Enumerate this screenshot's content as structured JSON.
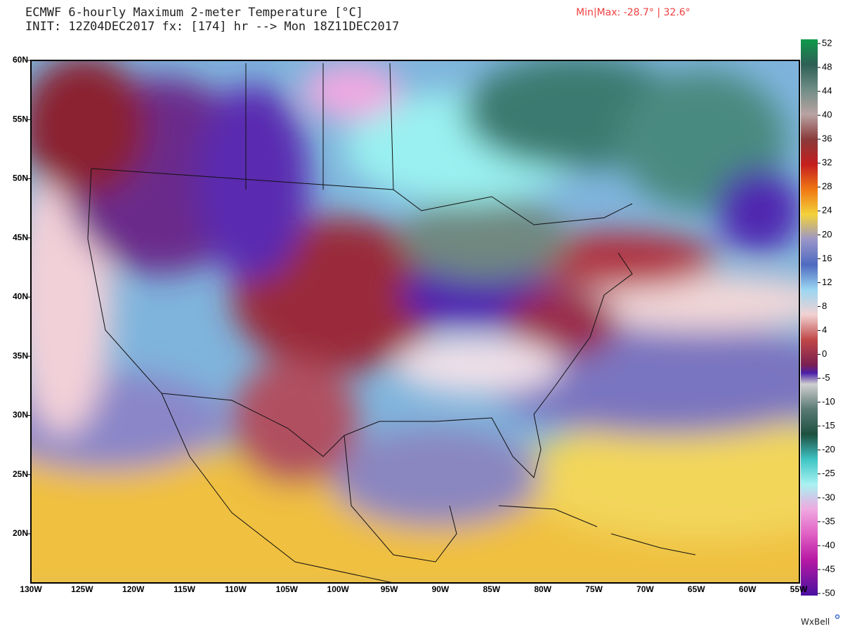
{
  "header": {
    "title": "ECMWF 6-hourly Maximum 2-meter Temperature [°C]",
    "subtitle": "INIT: 12Z04DEC2017 fx: [174] hr --> Mon 18Z11DEC2017",
    "minmax": "Min|Max: -28.7° | 32.6°"
  },
  "map": {
    "lat_labels": [
      "60N",
      "55N",
      "50N",
      "45N",
      "40N",
      "35N",
      "30N",
      "25N",
      "20N"
    ],
    "lon_labels": [
      "130W",
      "125W",
      "120W",
      "115W",
      "110W",
      "105W",
      "100W",
      "95W",
      "90W",
      "85W",
      "80W",
      "75W",
      "70W",
      "65W",
      "60W",
      "55W"
    ]
  },
  "colorbar": {
    "labels": [
      "52",
      "48",
      "44",
      "40",
      "36",
      "32",
      "28",
      "24",
      "20",
      "16",
      "12",
      "8",
      "4",
      "0",
      "-5",
      "-10",
      "-15",
      "-20",
      "-25",
      "-30",
      "-35",
      "-40",
      "-45",
      "-50"
    ]
  },
  "credit": "WxBell"
}
